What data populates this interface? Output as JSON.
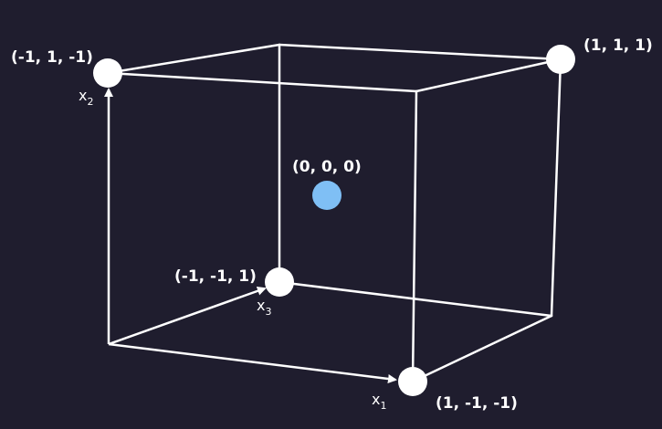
{
  "diagram": {
    "vertex_labels": {
      "top_left": "(-1, 1, -1)",
      "top_right": "(1, 1, 1)",
      "center": "(0, 0, 0)",
      "back_bottom": "(-1, -1, 1)",
      "front_bottom_right": "(1, -1, -1)"
    },
    "axes": [
      {
        "letter": "x",
        "subscript": "1"
      },
      {
        "letter": "x",
        "subscript": "2"
      },
      {
        "letter": "x",
        "subscript": "3"
      }
    ],
    "colors": {
      "background": "#1f1d2e",
      "lines": "#ffffff",
      "vertex": "#ffffff",
      "center_point": "#7fbff5"
    }
  }
}
